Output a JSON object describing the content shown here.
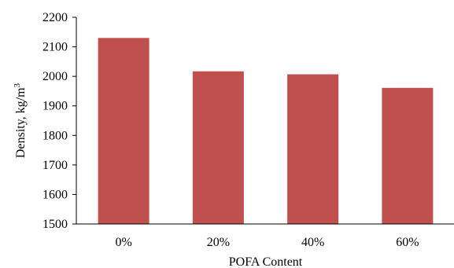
{
  "chart_data": {
    "type": "bar",
    "categories": [
      "0%",
      "20%",
      "40%",
      "60%"
    ],
    "values": [
      2130,
      2017,
      2007,
      1961
    ],
    "xlabel": "POFA Content",
    "ylabel_main": "Density, kg/m",
    "ylabel_sup": "3",
    "ylim": [
      1500,
      2200
    ],
    "yticks": [
      1500,
      1600,
      1700,
      1800,
      1900,
      2000,
      2100,
      2200
    ],
    "bar_color": "#c0504d",
    "grid": false,
    "legend": "none"
  }
}
